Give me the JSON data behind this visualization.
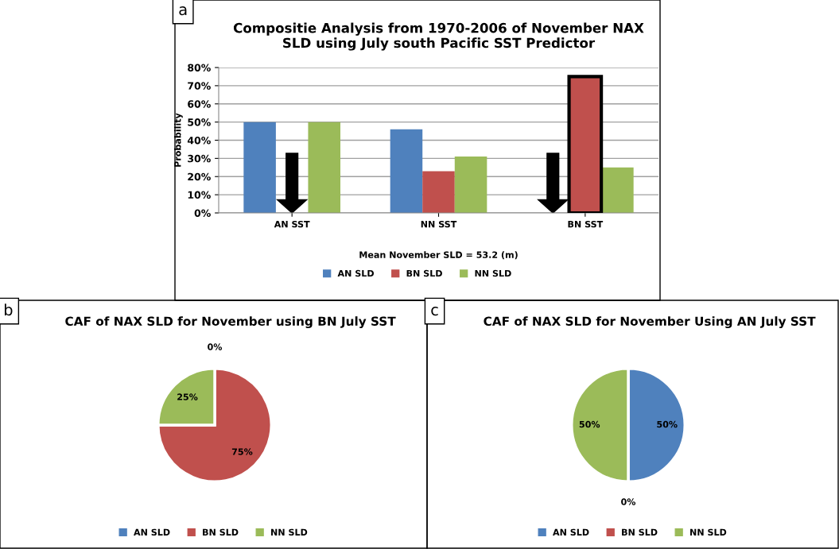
{
  "chart_data": [
    {
      "type": "bar",
      "title": "Compositie Analysis from 1970-2006 of November NAX\nSLD using July south Pacific SST Predictor",
      "xlabel": "Mean November SLD = 53.2 (m)",
      "ylabel": "Probability",
      "categories": [
        "AN SST",
        "NN SST",
        "BN SST"
      ],
      "series": [
        {
          "name": "AN SLD",
          "color": "#4f81bd",
          "values": [
            50,
            46,
            0
          ]
        },
        {
          "name": "BN SLD",
          "color": "#c0504d",
          "values": [
            0,
            23,
            75
          ]
        },
        {
          "name": "NN SLD",
          "color": "#9bbb59",
          "values": [
            50,
            31,
            25
          ]
        }
      ],
      "ylim": [
        0,
        80
      ],
      "yticks": [
        {
          "value": 0,
          "label": "0%"
        },
        {
          "value": 10,
          "label": "10%"
        },
        {
          "value": 20,
          "label": "20%"
        },
        {
          "value": 30,
          "label": "30%"
        },
        {
          "value": 40,
          "label": "40%"
        },
        {
          "value": 50,
          "label": "50%"
        },
        {
          "value": 60,
          "label": "60%"
        },
        {
          "value": 70,
          "label": "70%"
        },
        {
          "value": 80,
          "label": "80%"
        }
      ],
      "grid": "y",
      "legend": "bottom",
      "annotations": [
        "a"
      ]
    },
    {
      "type": "pie",
      "title": "CAF of NAX SLD for November using BN July SST",
      "categories": [
        "AN SLD",
        "BN SLD",
        "NN SLD"
      ],
      "values": [
        0,
        75,
        25
      ],
      "colors": [
        "#4f81bd",
        "#c0504d",
        "#9bbb59"
      ],
      "value_labels": [
        "0%",
        "75%",
        "25%"
      ],
      "legend": "bottom",
      "annotations": [
        "b"
      ]
    },
    {
      "type": "pie",
      "title": "CAF of NAX SLD for November Using AN July SST",
      "categories": [
        "AN SLD",
        "BN SLD",
        "NN SLD"
      ],
      "values": [
        50,
        0,
        50
      ],
      "colors": [
        "#4f81bd",
        "#c0504d",
        "#9bbb59"
      ],
      "value_labels": [
        "50%",
        "0%",
        "50%"
      ],
      "legend": "bottom",
      "annotations": [
        "c"
      ]
    }
  ]
}
